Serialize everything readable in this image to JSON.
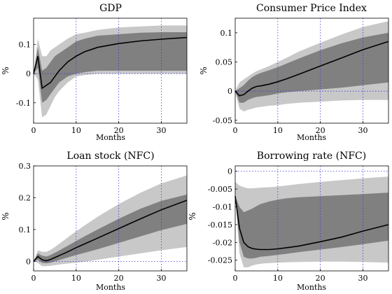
{
  "chart_data": [
    {
      "type": "line",
      "title": "GDP",
      "xlabel": "Months",
      "ylabel": "%",
      "xlim": [
        0,
        36
      ],
      "ylim": [
        -0.17,
        0.19
      ],
      "xticks": [
        0,
        10,
        20,
        30
      ],
      "yticks": [
        -0.1,
        0,
        0.1
      ],
      "ytick_labels": [
        "-0.1",
        "0",
        "0.1"
      ],
      "grid": "vertical dotted at 10, 20, 30 and zero line",
      "x": [
        0,
        1,
        2,
        3,
        4,
        5,
        6,
        8,
        10,
        12,
        15,
        20,
        25,
        30,
        36
      ],
      "median": [
        0,
        0.06,
        -0.05,
        -0.04,
        -0.03,
        -0.01,
        0.01,
        0.04,
        0.06,
        0.075,
        0.09,
        0.103,
        0.112,
        0.118,
        0.124
      ],
      "band_68": {
        "lower": [
          0,
          0.02,
          -0.1,
          -0.09,
          -0.07,
          -0.05,
          -0.03,
          -0.01,
          0.0,
          0.005,
          0.01,
          0.01,
          0.01,
          0.01,
          0.01
        ],
        "upper": [
          0,
          0.09,
          0.01,
          0.02,
          0.04,
          0.06,
          0.07,
          0.09,
          0.11,
          0.12,
          0.13,
          0.135,
          0.14,
          0.142,
          0.142
        ]
      },
      "band_90": {
        "lower": [
          0,
          -0.02,
          -0.15,
          -0.14,
          -0.11,
          -0.08,
          -0.06,
          -0.03,
          -0.01,
          -0.005,
          0.0,
          0.0,
          0.0,
          0.0,
          0.0
        ],
        "upper": [
          0,
          0.12,
          0.06,
          0.06,
          0.08,
          0.09,
          0.1,
          0.12,
          0.135,
          0.14,
          0.15,
          0.158,
          0.162,
          0.165,
          0.165
        ]
      }
    },
    {
      "type": "line",
      "title": "Consumer Price Index",
      "xlabel": "Months",
      "ylabel": "%",
      "xlim": [
        0,
        36
      ],
      "ylim": [
        -0.055,
        0.125
      ],
      "xticks": [
        0,
        10,
        20,
        30
      ],
      "yticks": [
        -0.05,
        0,
        0.05,
        0.1
      ],
      "ytick_labels": [
        "-0.05",
        "0",
        "0.05",
        "0.1"
      ],
      "grid": "vertical dotted at 10, 20, 30 and zero line",
      "x": [
        0,
        1,
        2,
        3,
        4,
        5,
        6,
        8,
        10,
        12,
        15,
        20,
        25,
        30,
        36
      ],
      "median": [
        0,
        -0.008,
        -0.006,
        0.0,
        0.005,
        0.008,
        0.009,
        0.012,
        0.016,
        0.021,
        0.029,
        0.043,
        0.057,
        0.071,
        0.085
      ],
      "band_68": {
        "lower": [
          0,
          -0.02,
          -0.02,
          -0.015,
          -0.012,
          -0.01,
          -0.009,
          -0.007,
          -0.004,
          -0.002,
          0.0,
          0.003,
          0.006,
          0.01,
          0.015
        ],
        "upper": [
          0,
          0.005,
          0.01,
          0.018,
          0.024,
          0.028,
          0.031,
          0.036,
          0.041,
          0.047,
          0.056,
          0.07,
          0.082,
          0.092,
          0.1
        ]
      },
      "band_90": {
        "lower": [
          0,
          -0.03,
          -0.035,
          -0.032,
          -0.03,
          -0.028,
          -0.027,
          -0.025,
          -0.024,
          -0.022,
          -0.02,
          -0.018,
          -0.016,
          -0.015,
          -0.015
        ],
        "upper": [
          0,
          0.015,
          0.02,
          0.025,
          0.03,
          0.034,
          0.037,
          0.043,
          0.05,
          0.057,
          0.068,
          0.083,
          0.097,
          0.11,
          0.12
        ]
      }
    },
    {
      "type": "line",
      "title": "Loan stock (NFC)",
      "xlabel": "Months",
      "ylabel": "%",
      "xlim": [
        0,
        36
      ],
      "ylim": [
        -0.03,
        0.3
      ],
      "xticks": [
        0,
        10,
        20,
        30
      ],
      "yticks": [
        0,
        0.1,
        0.2,
        0.3
      ],
      "ytick_labels": [
        "0",
        "0.1",
        "0.2",
        "0.3"
      ],
      "grid": "vertical dotted at 10, 20, 30 and zero line",
      "x": [
        0,
        1,
        2,
        3,
        4,
        5,
        6,
        8,
        10,
        12,
        15,
        20,
        25,
        30,
        36
      ],
      "median": [
        0,
        0.015,
        0.005,
        0.002,
        0.006,
        0.012,
        0.018,
        0.03,
        0.043,
        0.055,
        0.073,
        0.103,
        0.133,
        0.162,
        0.192
      ],
      "band_68": {
        "lower": [
          0,
          0.005,
          -0.005,
          -0.006,
          -0.004,
          0.0,
          0.004,
          0.012,
          0.02,
          0.027,
          0.038,
          0.058,
          0.078,
          0.098,
          0.118
        ],
        "upper": [
          0,
          0.025,
          0.018,
          0.015,
          0.02,
          0.027,
          0.034,
          0.049,
          0.064,
          0.079,
          0.1,
          0.134,
          0.165,
          0.19,
          0.21
        ]
      },
      "band_90": {
        "lower": [
          0,
          -0.005,
          -0.015,
          -0.015,
          -0.014,
          -0.012,
          -0.01,
          -0.007,
          -0.004,
          -0.001,
          0.005,
          0.015,
          0.025,
          0.035,
          0.045
        ],
        "upper": [
          0,
          0.035,
          0.03,
          0.03,
          0.036,
          0.045,
          0.055,
          0.075,
          0.095,
          0.113,
          0.14,
          0.18,
          0.215,
          0.245,
          0.27
        ]
      }
    },
    {
      "type": "line",
      "title": "Borrowing rate (NFC)",
      "xlabel": "Months",
      "ylabel": "%",
      "xlim": [
        0,
        36
      ],
      "ylim": [
        -0.028,
        0.0015
      ],
      "xticks": [
        0,
        10,
        20,
        30
      ],
      "yticks": [
        -0.025,
        -0.02,
        -0.015,
        -0.01,
        -0.005,
        0
      ],
      "ytick_labels": [
        "-0.025",
        "-0.02",
        "-0.015",
        "-0.01",
        "-0.005",
        "0"
      ],
      "grid": "vertical dotted at 10, 20, 30 and zero line",
      "x": [
        0,
        1,
        2,
        3,
        4,
        5,
        6,
        8,
        10,
        12,
        15,
        20,
        25,
        30,
        36
      ],
      "median": [
        -0.007,
        -0.016,
        -0.02,
        -0.0212,
        -0.0217,
        -0.0219,
        -0.022,
        -0.022,
        -0.0218,
        -0.0215,
        -0.021,
        -0.0198,
        -0.0185,
        -0.0168,
        -0.015
      ],
      "band_68": {
        "lower": [
          -0.007,
          -0.02,
          -0.024,
          -0.0245,
          -0.0245,
          -0.0243,
          -0.024,
          -0.0238,
          -0.0235,
          -0.0232,
          -0.0227,
          -0.022,
          -0.0213,
          -0.0205,
          -0.0195
        ],
        "upper": [
          -0.007,
          -0.01,
          -0.0115,
          -0.011,
          -0.0105,
          -0.0098,
          -0.0092,
          -0.0085,
          -0.008,
          -0.0076,
          -0.0073,
          -0.007,
          -0.0067,
          -0.0064,
          -0.006
        ]
      },
      "band_90": {
        "lower": [
          -0.007,
          -0.023,
          -0.027,
          -0.027,
          -0.0265,
          -0.0262,
          -0.026,
          -0.0258,
          -0.0257,
          -0.0256,
          -0.0255,
          -0.0254,
          -0.0254,
          -0.0255,
          -0.0257
        ],
        "upper": [
          -0.003,
          -0.004,
          -0.0045,
          -0.0048,
          -0.0048,
          -0.0047,
          -0.0046,
          -0.0045,
          -0.0043,
          -0.004,
          -0.0036,
          -0.003,
          -0.0025,
          -0.002,
          -0.0015
        ]
      }
    }
  ]
}
